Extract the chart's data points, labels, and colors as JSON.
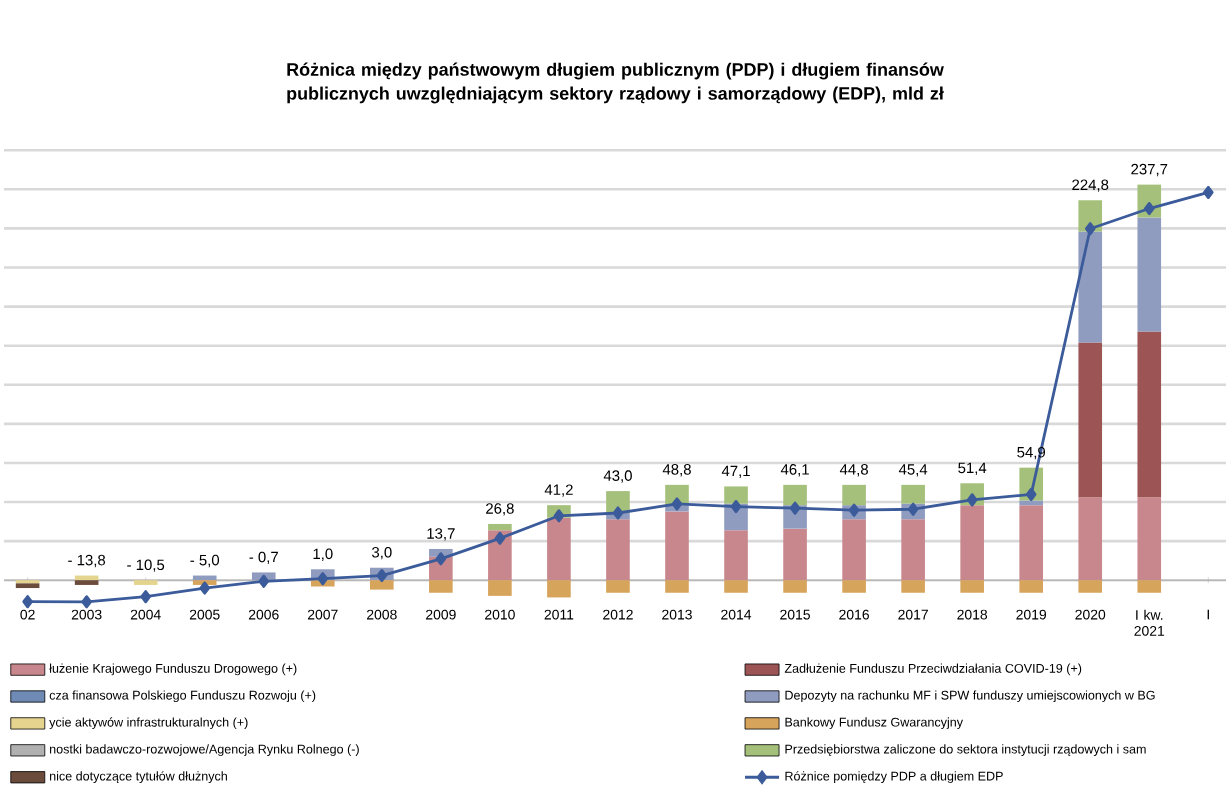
{
  "chart_data": {
    "type": "bar",
    "stacked": true,
    "title": "Różnica między państwowym długiem publicznym (PDP) i długiem finansów publicznych uwzględniającym sektory rządowy i samorządowy (EDP), mld zł",
    "categories": [
      "02",
      "2003",
      "2004",
      "2005",
      "2006",
      "2007",
      "2008",
      "2009",
      "2010",
      "2011",
      "2012",
      "2013",
      "2014",
      "2015",
      "2016",
      "2017",
      "2018",
      "2019",
      "2020",
      "I kw. 2021",
      "I"
    ],
    "yticks": [
      {
        "value": 0,
        "label": null
      },
      {
        "value": 25,
        "label": null
      },
      {
        "value": 50,
        "label": null
      },
      {
        "value": 75,
        "label": null
      },
      {
        "value": 100,
        "label": null
      },
      {
        "value": 125,
        "label": null
      },
      {
        "value": 150,
        "label": null
      },
      {
        "value": 175,
        "label": null
      },
      {
        "value": 200,
        "label": null
      },
      {
        "value": 225,
        "label": null
      },
      {
        "value": 250,
        "label": null
      },
      {
        "value": 275,
        "label": null
      }
    ],
    "tick_labels": "x",
    "grid": "y",
    "legend": "bottom",
    "series": [
      {
        "name": "łużenie Krajowego Funduszu Drogowego (+)",
        "color": "#c8878c",
        "values": [
          null,
          null,
          null,
          null,
          null,
          null,
          null,
          15,
          32,
          40,
          39,
          44,
          32,
          33,
          39,
          39,
          48,
          48,
          53,
          53,
          null
        ]
      },
      {
        "name": "cza finansowa Polskiego Funduszu Rozwoju (+)",
        "color": "#6f8ab5",
        "values": [
          null,
          null,
          null,
          null,
          null,
          null,
          null,
          null,
          null,
          null,
          null,
          null,
          null,
          null,
          null,
          null,
          null,
          null,
          null,
          null,
          null
        ]
      },
      {
        "name": "ycie aktywów infrastrukturalnych (+)",
        "color": "#e5d48e",
        "values": [
          -2,
          3,
          -3,
          null,
          null,
          null,
          null,
          null,
          null,
          null,
          null,
          null,
          null,
          null,
          null,
          null,
          null,
          null,
          null,
          null,
          null
        ]
      },
      {
        "name": "nostki badawczo-rozwojowe/Agencja Rynku Rolnego (-)",
        "color": "#b0b0b0",
        "values": [
          null,
          null,
          null,
          null,
          null,
          null,
          null,
          null,
          null,
          null,
          null,
          null,
          null,
          null,
          null,
          null,
          null,
          null,
          null,
          null,
          null
        ]
      },
      {
        "name": "nice dotyczące tytułów dłużnych",
        "color": "#6a4b3c",
        "values": [
          -3,
          -3,
          null,
          null,
          null,
          null,
          null,
          null,
          null,
          null,
          null,
          null,
          null,
          null,
          null,
          null,
          null,
          null,
          null,
          null,
          null
        ]
      },
      {
        "name": "Zadłużenie Funduszu Przeciwdziałania COVID-19 (+)",
        "color": "#9c5454",
        "values": [
          null,
          null,
          null,
          null,
          null,
          null,
          null,
          null,
          null,
          null,
          null,
          null,
          null,
          null,
          null,
          null,
          null,
          null,
          99,
          106,
          null
        ]
      },
      {
        "name": "Depozyty na rachunku MF i SPW funduszy umiejscowionych w BG",
        "color": "#8f9cc0",
        "values": [
          null,
          null,
          null,
          3,
          5,
          7,
          8,
          5,
          null,
          null,
          4,
          4,
          17,
          15,
          9,
          10,
          null,
          3,
          71,
          73,
          null
        ]
      },
      {
        "name": "Bankowy Fundusz Gwarancyjny",
        "color": "#d7a45c",
        "values": [
          null,
          null,
          null,
          -3,
          null,
          -4,
          -6,
          -8,
          -10,
          -11,
          -8,
          -8,
          -8,
          -8,
          -8,
          -8,
          -8,
          -8,
          -8,
          -8,
          null
        ]
      },
      {
        "name": "Przedsiębiorstwa zaliczone do sektora instytucji rządowych i sam",
        "color": "#a4c07a",
        "values": [
          null,
          null,
          null,
          null,
          null,
          null,
          null,
          null,
          4,
          8,
          14,
          13,
          11,
          13,
          13,
          12,
          14,
          21,
          20,
          21,
          null
        ]
      },
      {
        "name": "Różnice pomiędzy PDP a długiem EDP",
        "type": "line",
        "color": "#3b5b9a",
        "marker": "diamond",
        "line_style": "solid",
        "values": [
          -13.7,
          -13.8,
          -10.5,
          -5.0,
          -0.7,
          1.0,
          3.0,
          13.7,
          26.8,
          41.2,
          43.0,
          48.8,
          47.1,
          46.1,
          44.8,
          45.4,
          51.4,
          54.9,
          224.8,
          237.7,
          248
        ],
        "value_labels": [
          null,
          "- 13,8",
          "- 10,5",
          "- 5,0",
          "- 0,7",
          "1,0",
          "3,0",
          "13,7",
          "26,8",
          "41,2",
          "43,0",
          "48,8",
          "47,1",
          "46,1",
          "44,8",
          "45,4",
          "51,4",
          "54,9",
          "224,8",
          "237,7",
          null
        ]
      }
    ]
  }
}
